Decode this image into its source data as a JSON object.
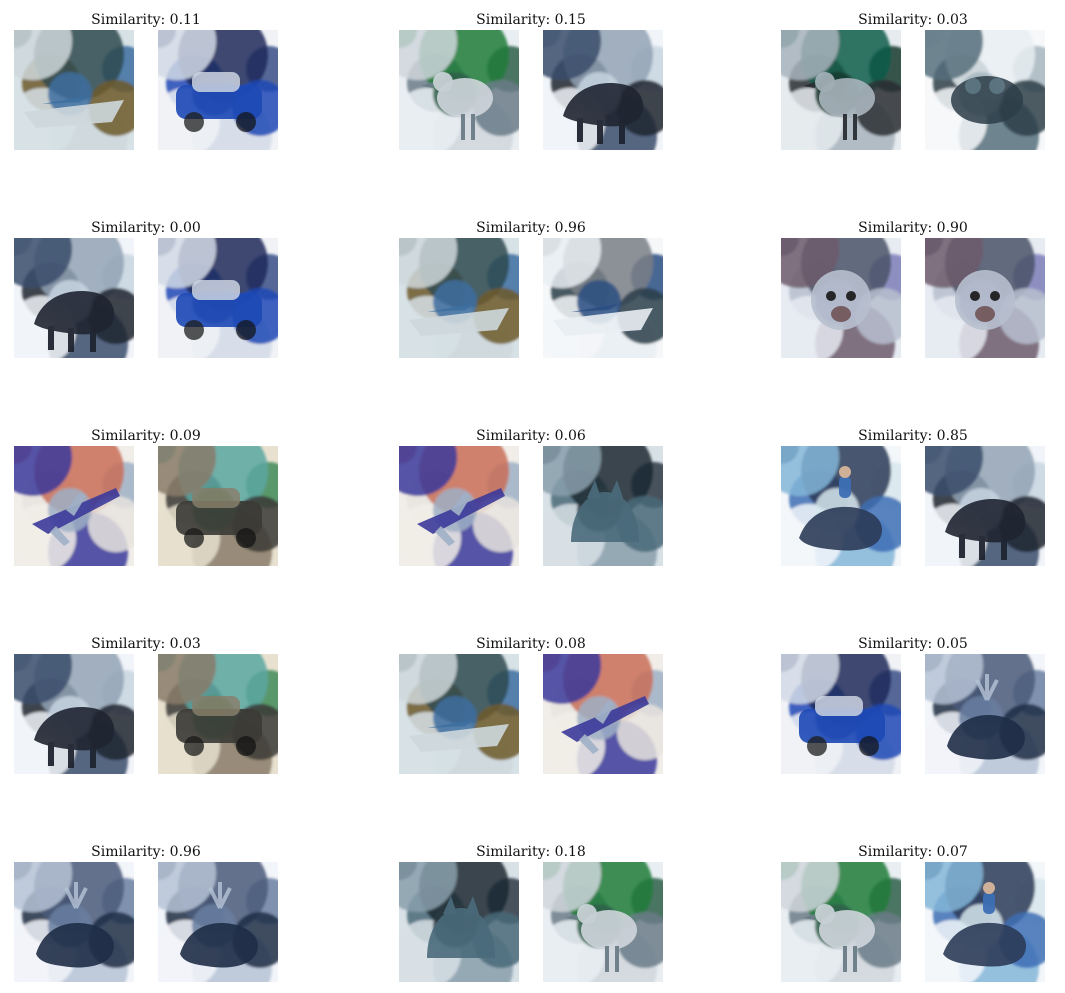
{
  "pairs": [
    {
      "label": "Similarity: 0.11",
      "left_icon": "boat-image",
      "right_icon": "car-image"
    },
    {
      "label": "Similarity: 0.15",
      "left_icon": "bird-image",
      "right_icon": "horse-image"
    },
    {
      "label": "Similarity: 0.03",
      "left_icon": "ostrich-image",
      "right_icon": "frog-image"
    },
    {
      "label": "Similarity: 0.00",
      "left_icon": "horse-image",
      "right_icon": "car-image"
    },
    {
      "label": "Similarity: 0.96",
      "left_icon": "boat-image",
      "right_icon": "ship-image"
    },
    {
      "label": "Similarity: 0.90",
      "left_icon": "dog-image",
      "right_icon": "dog-image"
    },
    {
      "label": "Similarity: 0.09",
      "left_icon": "airplane-image",
      "right_icon": "truck-image"
    },
    {
      "label": "Similarity: 0.06",
      "left_icon": "airplane-image",
      "right_icon": "cat-image"
    },
    {
      "label": "Similarity: 0.85",
      "left_icon": "rider-image",
      "right_icon": "horse-image"
    },
    {
      "label": "Similarity: 0.03",
      "left_icon": "horse-image",
      "right_icon": "truck-image"
    },
    {
      "label": "Similarity: 0.08",
      "left_icon": "boat-image",
      "right_icon": "airplane-image"
    },
    {
      "label": "Similarity: 0.05",
      "left_icon": "car-image",
      "right_icon": "deer-image"
    },
    {
      "label": "Similarity: 0.96",
      "left_icon": "deer-image",
      "right_icon": "deer-image"
    },
    {
      "label": "Similarity: 0.18",
      "left_icon": "cat-image",
      "right_icon": "bird-image"
    },
    {
      "label": "Similarity: 0.07",
      "left_icon": "bird-image",
      "right_icon": "rider-image"
    }
  ],
  "colors": {
    "background": "#ffffff",
    "text": "#111111"
  }
}
